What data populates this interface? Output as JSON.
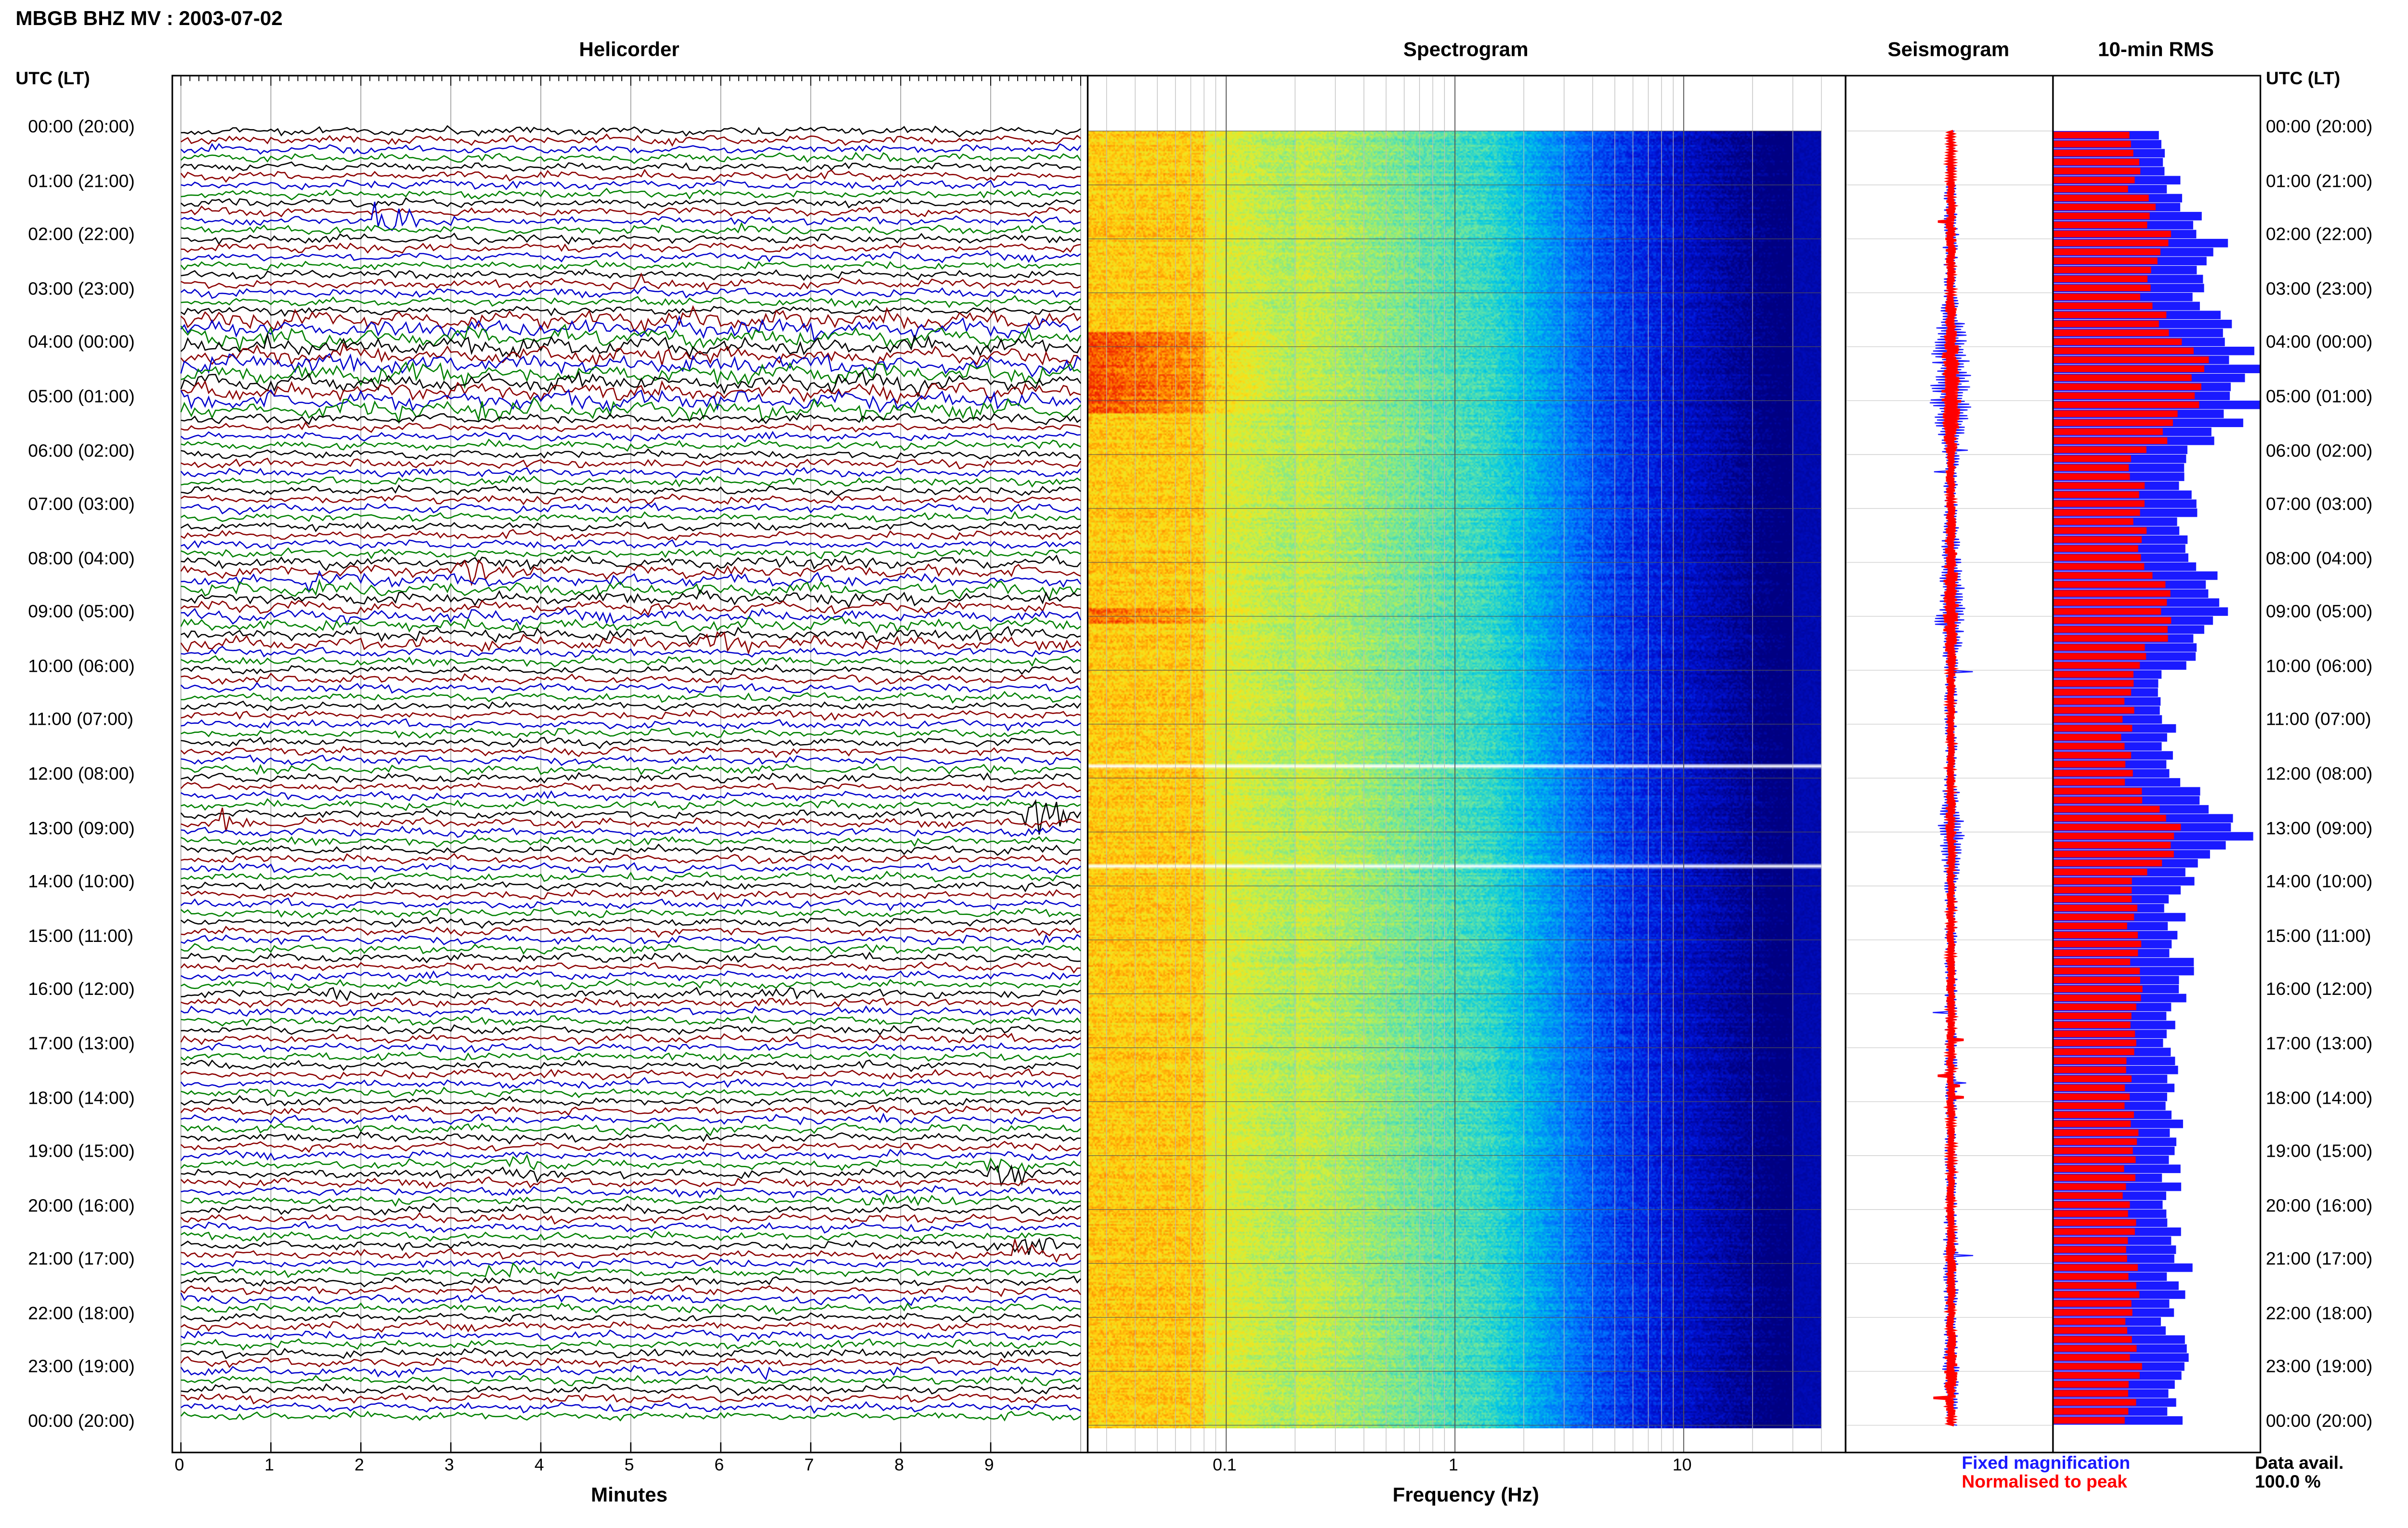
{
  "header": {
    "station_title": "MBGB BHZ MV : 2003-07-02"
  },
  "panels": {
    "helicorder": "Helicorder",
    "spectrogram": "Spectrogram",
    "seismogram": "Seismogram",
    "rms": "10-min RMS"
  },
  "axes": {
    "time_header_left": "UTC (LT)",
    "time_header_right": "UTC (LT)",
    "minutes_label": "Minutes",
    "frequency_label": "Frequency (Hz)"
  },
  "time_labels": [
    "00:00 (20:00)",
    "01:00 (21:00)",
    "02:00 (22:00)",
    "03:00 (23:00)",
    "04:00 (00:00)",
    "05:00 (01:00)",
    "06:00 (02:00)",
    "07:00 (03:00)",
    "08:00 (04:00)",
    "09:00 (05:00)",
    "10:00 (06:00)",
    "11:00 (07:00)",
    "12:00 (08:00)",
    "13:00 (09:00)",
    "14:00 (10:00)",
    "15:00 (11:00)",
    "16:00 (12:00)",
    "17:00 (13:00)",
    "18:00 (14:00)",
    "19:00 (15:00)",
    "20:00 (16:00)",
    "21:00 (17:00)",
    "22:00 (18:00)",
    "23:00 (19:00)",
    "00:00 (20:00)"
  ],
  "legend": {
    "fixed": "Fixed magnification",
    "normalised": "Normalised to peak",
    "fixed_color": "#1a1aff",
    "normalised_color": "#ff0000"
  },
  "data_availability": {
    "label": "Data avail.",
    "value": "100.0 %"
  },
  "chart_data": [
    {
      "type": "line",
      "name": "helicorder",
      "title": "Helicorder",
      "xlabel": "Minutes",
      "x_ticks": [
        "0",
        "1",
        "2",
        "3",
        "4",
        "5",
        "6",
        "7",
        "8",
        "9"
      ],
      "xlim": [
        0,
        10
      ],
      "rows_per_hour": 6,
      "trace_colors": [
        "#000000",
        "#8b0000",
        "#0000cc",
        "#008000"
      ],
      "events": [
        {
          "hour": 1.6,
          "minute": 2.4,
          "amplitude": 3.0,
          "color": "#008000"
        },
        {
          "hour": 2.8,
          "minute": 5.2,
          "amplitude": 1.4,
          "color": "#8b0000"
        },
        {
          "hour": 4.55,
          "minute": 2.7,
          "amplitude": 1.8,
          "color": "#000000"
        },
        {
          "hour": 4.95,
          "minute": 9.2,
          "amplitude": 1.6,
          "color": "#0000cc"
        },
        {
          "hour": 8.1,
          "minute": 3.3,
          "amplitude": 2.2,
          "color": "#8b0000"
        },
        {
          "hour": 8.3,
          "minute": 1.5,
          "amplitude": 1.6,
          "color": "#0000cc"
        },
        {
          "hour": 9.5,
          "minute": 6.0,
          "amplitude": 1.5,
          "color": "#8b0000"
        },
        {
          "hour": 12.6,
          "minute": 9.6,
          "amplitude": 3.2,
          "color": "#000000"
        },
        {
          "hour": 12.8,
          "minute": 0.5,
          "amplitude": 2.2,
          "color": "#8b0000"
        },
        {
          "hour": 15.95,
          "minute": 1.8,
          "amplitude": 1.2,
          "color": "#000000"
        },
        {
          "hour": 15.95,
          "minute": 6.7,
          "amplitude": 1.2,
          "color": "#000000"
        },
        {
          "hour": 19.25,
          "minute": 3.8,
          "amplitude": 1.3,
          "color": "#000000"
        },
        {
          "hour": 19.25,
          "minute": 9.2,
          "amplitude": 1.6,
          "color": "#000000"
        },
        {
          "hour": 19.9,
          "minute": 7.8,
          "amplitude": 1.2,
          "color": "#008000"
        },
        {
          "hour": 20.75,
          "minute": 9.5,
          "amplitude": 1.6,
          "color": "#8b0000"
        },
        {
          "hour": 21.1,
          "minute": 3.6,
          "amplitude": 1.3,
          "color": "#008000"
        },
        {
          "hour": 22.95,
          "minute": 6.5,
          "amplitude": 1.2,
          "color": "#008000"
        }
      ]
    },
    {
      "type": "heatmap",
      "name": "spectrogram",
      "title": "Spectrogram",
      "xlabel": "Frequency (Hz)",
      "x_scale": "log",
      "xlim": [
        0.025,
        40
      ],
      "x_ticks": [
        "0.1",
        "1",
        "10"
      ],
      "gaps_utc_hours": [
        11.75,
        13.6
      ]
    },
    {
      "type": "line",
      "name": "seismogram",
      "title": "Seismogram",
      "series": [
        {
          "name": "Fixed magnification",
          "color": "#1a1aff"
        },
        {
          "name": "Normalised to peak",
          "color": "#ff0000"
        }
      ],
      "hourly_envelope_fixed": [
        2,
        3,
        4,
        3,
        9,
        10,
        4,
        3,
        5,
        8,
        3,
        3,
        3,
        7,
        3,
        3,
        3,
        3,
        3,
        3,
        3,
        4,
        3,
        4,
        3
      ],
      "hourly_envelope_normalised": [
        1.5,
        2,
        2.5,
        2,
        4,
        5,
        2.5,
        2,
        3,
        4,
        2,
        2,
        2,
        2.5,
        2,
        2,
        2,
        2,
        2,
        2,
        2,
        2.5,
        2,
        3,
        2
      ]
    },
    {
      "type": "bar",
      "name": "rms",
      "title": "10-min RMS",
      "bins_per_hour": 6,
      "series": [
        {
          "name": "Fixed magnification",
          "color": "#1a1aff"
        },
        {
          "name": "Normalised to peak",
          "color": "#ff0000"
        }
      ],
      "hourly_fixed": [
        0.52,
        0.58,
        0.78,
        0.66,
        0.92,
        0.95,
        0.62,
        0.64,
        0.7,
        0.85,
        0.56,
        0.55,
        0.6,
        0.96,
        0.58,
        0.62,
        0.62,
        0.58,
        0.58,
        0.57,
        0.56,
        0.62,
        0.56,
        0.62,
        0.56
      ],
      "hourly_normalised": [
        0.38,
        0.4,
        0.55,
        0.42,
        0.7,
        0.72,
        0.4,
        0.42,
        0.46,
        0.58,
        0.36,
        0.36,
        0.36,
        0.62,
        0.38,
        0.4,
        0.4,
        0.38,
        0.38,
        0.37,
        0.36,
        0.4,
        0.36,
        0.4,
        0.36
      ]
    }
  ]
}
